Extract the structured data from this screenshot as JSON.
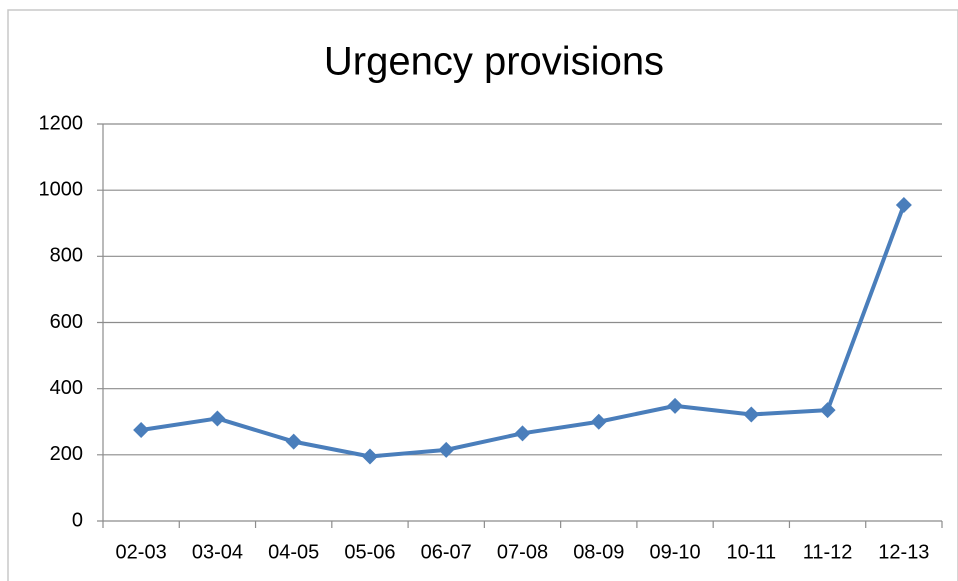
{
  "chart_data": {
    "type": "line",
    "title": "Urgency provisions",
    "categories": [
      "02-03",
      "03-04",
      "04-05",
      "05-06",
      "06-07",
      "07-08",
      "08-09",
      "09-10",
      "10-11",
      "11-12",
      "12-13"
    ],
    "series": [
      {
        "name": "Urgency provisions",
        "color": "#4a7ebb",
        "values": [
          275,
          310,
          240,
          195,
          215,
          265,
          300,
          348,
          322,
          335,
          955
        ]
      }
    ],
    "ylim": [
      0,
      1200
    ],
    "yticks": [
      0,
      200,
      400,
      600,
      800,
      1000,
      1200
    ],
    "grid": true
  }
}
